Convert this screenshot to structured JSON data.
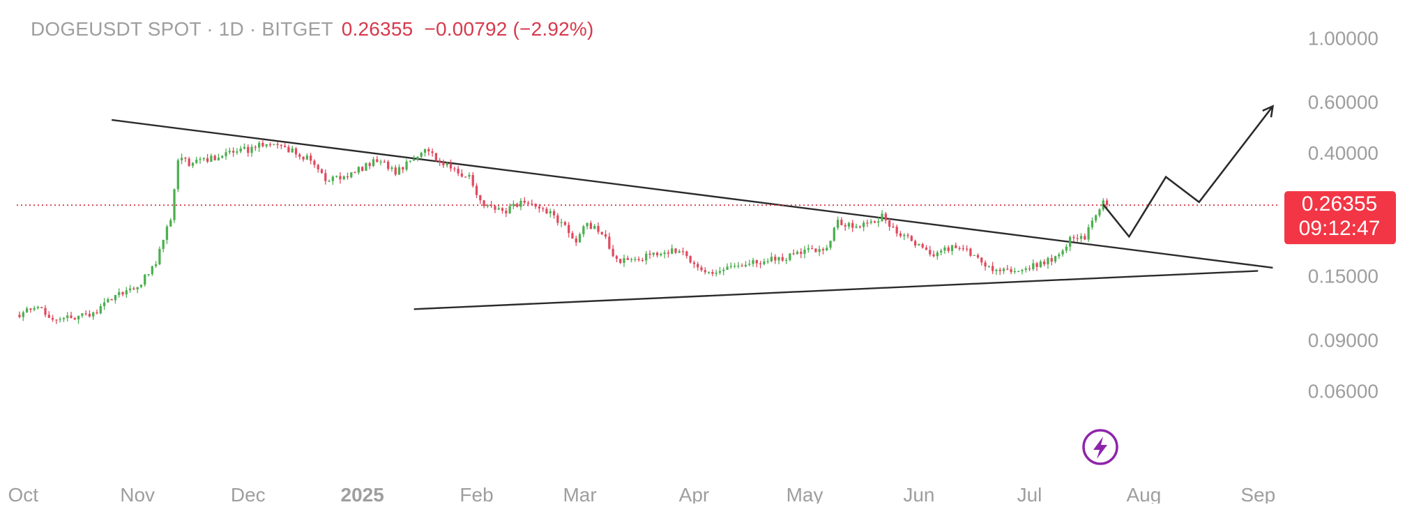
{
  "header": {
    "symbol": "DOGEUSDT SPOT · 1D · BITGET",
    "price": "0.26355",
    "change": "−0.00792 (−2.92%)"
  },
  "price_badge": {
    "price": "0.26355",
    "countdown": "09:12:47"
  },
  "colors": {
    "up": "#4caf50",
    "down": "#e04a5f",
    "badge": "#f23645",
    "text_muted": "#9e9e9e",
    "trendline": "#2b2b2b",
    "lightning": "#8e24aa"
  },
  "icons": {
    "lightning": "lightning-bolt-icon"
  },
  "chart_data": {
    "type": "candlestick",
    "scale": "log",
    "ylim": [
      0.045,
      1.12
    ],
    "x_range": [
      "2024-09-30",
      "2025-09-07"
    ],
    "y_ticks": [
      {
        "value": 1.0,
        "label": "1.00000"
      },
      {
        "value": 0.6,
        "label": "0.60000"
      },
      {
        "value": 0.4,
        "label": "0.40000"
      },
      {
        "value": 0.15,
        "label": "0.15000"
      },
      {
        "value": 0.09,
        "label": "0.09000"
      },
      {
        "value": 0.06,
        "label": "0.06000"
      }
    ],
    "x_ticks": [
      {
        "date": "2024-10-01",
        "label": "Oct",
        "bold": false
      },
      {
        "date": "2024-11-01",
        "label": "Nov",
        "bold": false
      },
      {
        "date": "2024-12-01",
        "label": "Dec",
        "bold": false
      },
      {
        "date": "2025-01-01",
        "label": "2025",
        "bold": true
      },
      {
        "date": "2025-02-01",
        "label": "Feb",
        "bold": false
      },
      {
        "date": "2025-03-01",
        "label": "Mar",
        "bold": false
      },
      {
        "date": "2025-04-01",
        "label": "Apr",
        "bold": false
      },
      {
        "date": "2025-05-01",
        "label": "May",
        "bold": false
      },
      {
        "date": "2025-06-01",
        "label": "Jun",
        "bold": false
      },
      {
        "date": "2025-07-01",
        "label": "Jul",
        "bold": false
      },
      {
        "date": "2025-08-01",
        "label": "Aug",
        "bold": false
      },
      {
        "date": "2025-09-01",
        "label": "Sep",
        "bold": false
      }
    ],
    "price_line": 0.26355,
    "close_keypoints": [
      [
        "2024-09-30",
        0.11
      ],
      [
        "2024-10-05",
        0.118
      ],
      [
        "2024-10-09",
        0.106
      ],
      [
        "2024-10-13",
        0.108
      ],
      [
        "2024-10-20",
        0.11
      ],
      [
        "2024-10-26",
        0.13
      ],
      [
        "2024-11-01",
        0.136
      ],
      [
        "2024-11-06",
        0.168
      ],
      [
        "2024-11-10",
        0.24
      ],
      [
        "2024-11-12",
        0.38
      ],
      [
        "2024-11-15",
        0.37
      ],
      [
        "2024-11-20",
        0.378
      ],
      [
        "2024-11-25",
        0.4
      ],
      [
        "2024-12-01",
        0.41
      ],
      [
        "2024-12-08",
        0.44
      ],
      [
        "2024-12-12",
        0.41
      ],
      [
        "2024-12-18",
        0.38
      ],
      [
        "2024-12-22",
        0.32
      ],
      [
        "2024-12-28",
        0.33
      ],
      [
        "2025-01-05",
        0.38
      ],
      [
        "2025-01-10",
        0.34
      ],
      [
        "2025-01-18",
        0.42
      ],
      [
        "2025-01-22",
        0.37
      ],
      [
        "2025-01-30",
        0.33
      ],
      [
        "2025-02-03",
        0.26
      ],
      [
        "2025-02-08",
        0.25
      ],
      [
        "2025-02-14",
        0.27
      ],
      [
        "2025-02-21",
        0.25
      ],
      [
        "2025-02-28",
        0.2
      ],
      [
        "2025-03-03",
        0.23
      ],
      [
        "2025-03-08",
        0.2
      ],
      [
        "2025-03-11",
        0.17
      ],
      [
        "2025-03-20",
        0.175
      ],
      [
        "2025-03-27",
        0.185
      ],
      [
        "2025-04-06",
        0.15
      ],
      [
        "2025-04-10",
        0.16
      ],
      [
        "2025-04-22",
        0.17
      ],
      [
        "2025-04-30",
        0.18
      ],
      [
        "2025-05-07",
        0.19
      ],
      [
        "2025-05-10",
        0.23
      ],
      [
        "2025-05-15",
        0.22
      ],
      [
        "2025-05-22",
        0.24
      ],
      [
        "2025-05-25",
        0.22
      ],
      [
        "2025-06-01",
        0.19
      ],
      [
        "2025-06-05",
        0.18
      ],
      [
        "2025-06-12",
        0.19
      ],
      [
        "2025-06-17",
        0.17
      ],
      [
        "2025-06-22",
        0.155
      ],
      [
        "2025-07-01",
        0.16
      ],
      [
        "2025-07-07",
        0.17
      ],
      [
        "2025-07-12",
        0.2
      ],
      [
        "2025-07-16",
        0.205
      ],
      [
        "2025-07-18",
        0.23
      ],
      [
        "2025-07-21",
        0.27
      ],
      [
        "2025-07-22",
        0.264
      ]
    ],
    "trendlines": [
      {
        "name": "descending-resistance",
        "from": [
          "2024-10-25",
          0.52
        ],
        "to": [
          "2025-09-05",
          0.16
        ]
      },
      {
        "name": "ascending-support",
        "from": [
          "2025-01-15",
          0.115
        ],
        "to": [
          "2025-09-01",
          0.156
        ]
      }
    ],
    "projection": [
      [
        "2025-07-21",
        0.265
      ],
      [
        "2025-07-28",
        0.205
      ],
      [
        "2025-08-07",
        0.33
      ],
      [
        "2025-08-16",
        0.27
      ],
      [
        "2025-09-05",
        0.58
      ]
    ],
    "projection_arrow": true
  }
}
